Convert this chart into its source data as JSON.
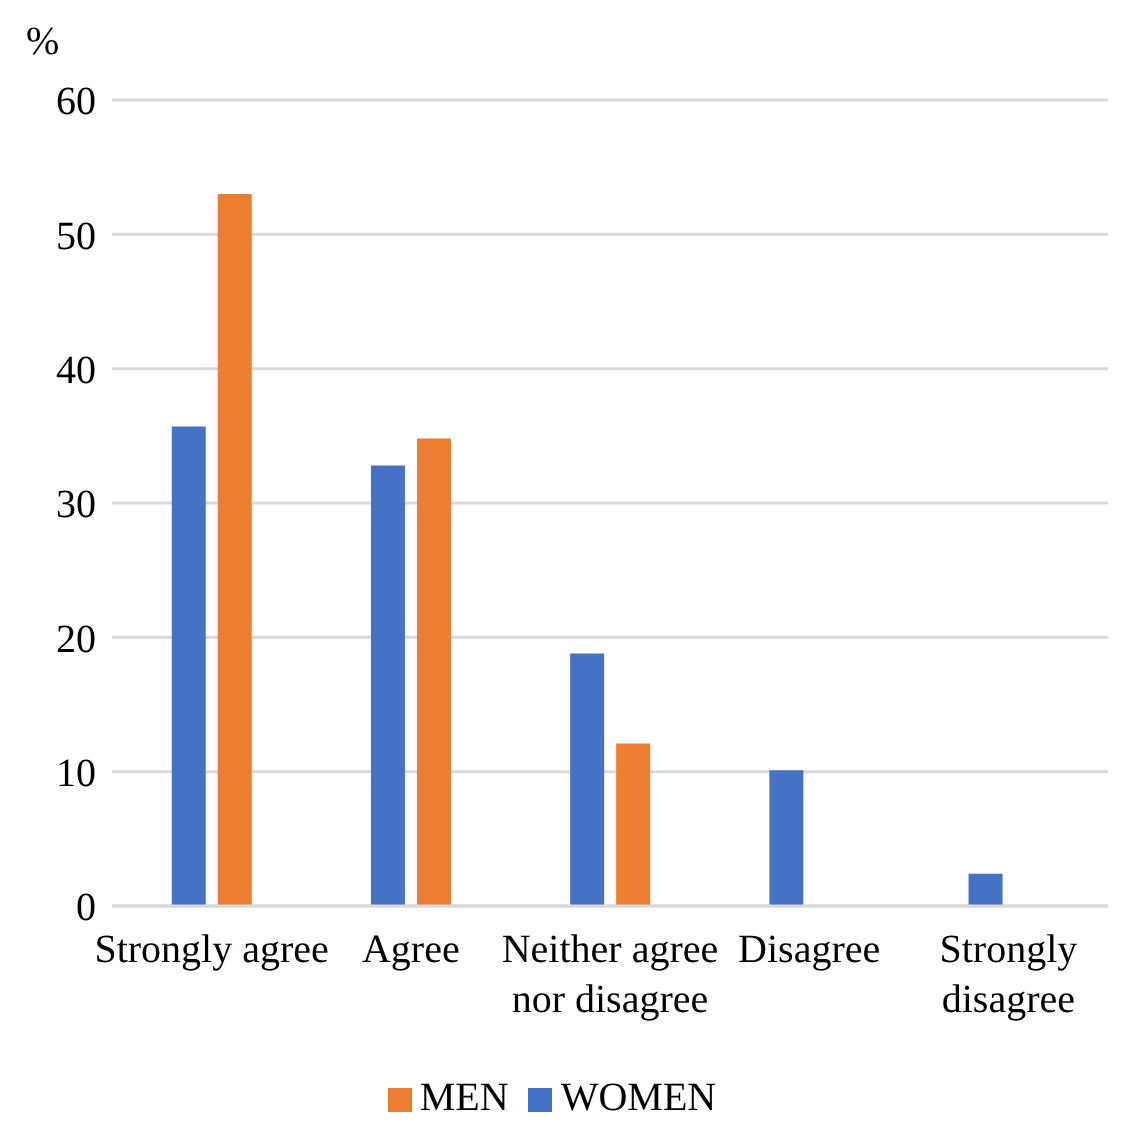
{
  "chart_data": {
    "type": "bar",
    "ylabel": "%",
    "categories": [
      "Strongly agree",
      "Agree",
      "Neither agree nor disagree",
      "Disagree",
      "Strongly disagree"
    ],
    "series": [
      {
        "name": "WOMEN",
        "color": "#4472c4",
        "values": [
          35.7,
          32.8,
          18.8,
          10.1,
          2.4
        ]
      },
      {
        "name": "MEN",
        "color": "#ed7d31",
        "values": [
          53.0,
          34.8,
          12.1,
          null,
          null
        ]
      }
    ],
    "ylim": [
      0,
      60
    ],
    "yticks": [
      0,
      10,
      20,
      30,
      40,
      50,
      60
    ],
    "grid": "y",
    "legend": "bottom"
  }
}
